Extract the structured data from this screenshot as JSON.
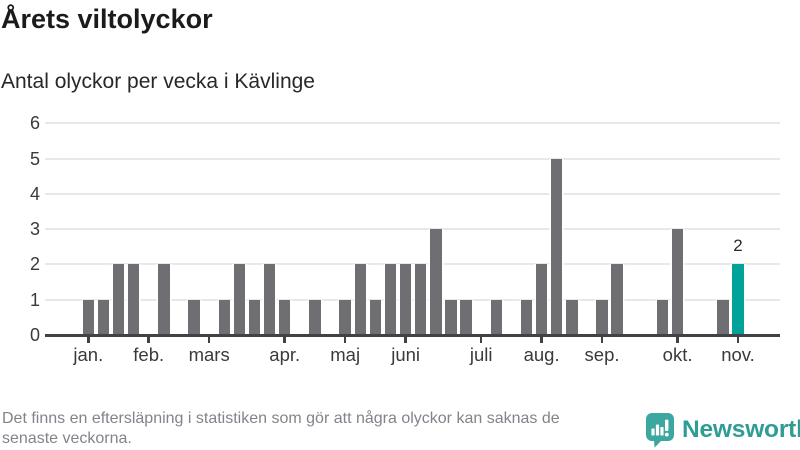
{
  "page": {
    "title": "Årets viltolyckor",
    "subtitle": "Antal olyckor per vecka i Kävlinge"
  },
  "chart_data": {
    "type": "bar",
    "title": "Årets viltolyckor",
    "subtitle": "Antal olyckor per vecka i Kävlinge",
    "x_unit": "vecka (en stapel per vecka, jan–nov)",
    "values": [
      1,
      1,
      2,
      2,
      0,
      2,
      0,
      1,
      0,
      1,
      2,
      1,
      2,
      1,
      0,
      1,
      0,
      1,
      2,
      1,
      2,
      2,
      2,
      3,
      1,
      1,
      0,
      1,
      0,
      1,
      2,
      5,
      1,
      0,
      1,
      2,
      0,
      0,
      1,
      3,
      0,
      0,
      1,
      2
    ],
    "x_tick_labels": [
      "jan.",
      "feb.",
      "mars",
      "apr.",
      "maj",
      "juni",
      "juli",
      "aug.",
      "sep.",
      "okt.",
      "nov."
    ],
    "x_tick_positions": [
      0,
      4,
      8,
      13,
      17,
      21,
      26,
      30,
      34,
      39,
      43
    ],
    "y_ticks": [
      0,
      1,
      2,
      3,
      4,
      5,
      6
    ],
    "ylim": [
      0,
      6
    ],
    "grid": true,
    "legend": "none",
    "bar_color": "#6e6e73",
    "grid_color": "#e8e8e8",
    "axis_color": "#414146",
    "highlight": {
      "index": 43,
      "label": "2",
      "color": "#00a29a"
    }
  },
  "footer": {
    "note": "Det finns en eftersläpning i statistiken som gör att några olyckor kan saknas de senaste veckorna.",
    "brand": {
      "name": "Newsworthy",
      "color": "#2f9c95",
      "icon": "newsworthy-speech-bubble-bar-chart-icon",
      "icon_color": "#3ba79f"
    }
  }
}
